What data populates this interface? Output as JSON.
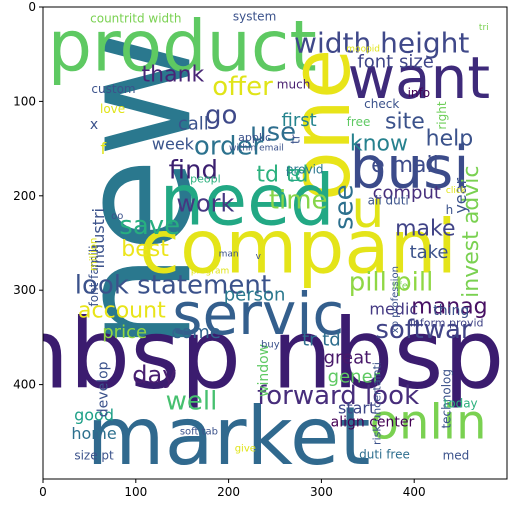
{
  "chart_data": {
    "type": "wordcloud",
    "xlim": [
      0,
      500
    ],
    "ylim": [
      500,
      0
    ],
    "xticks": [
      0,
      100,
      200,
      300,
      400
    ],
    "yticks": [
      0,
      100,
      200,
      300,
      400
    ],
    "words": [
      {
        "text": "new",
        "x": 100,
        "y": 195,
        "size": 155,
        "color": "#2a788e",
        "rotate": -90
      },
      {
        "text": "nbsp nbsp",
        "x": 230,
        "y": 368,
        "size": 96,
        "color": "#3b1c6f"
      },
      {
        "text": "market",
        "x": 200,
        "y": 455,
        "size": 80,
        "color": "#30698e"
      },
      {
        "text": "compani",
        "x": 275,
        "y": 255,
        "size": 74,
        "color": "#e4e419"
      },
      {
        "text": "product",
        "x": 150,
        "y": 42,
        "size": 70,
        "color": "#5ec962"
      },
      {
        "text": "one",
        "x": 300,
        "y": 125,
        "size": 82,
        "color": "#e8e419",
        "rotate": -90
      },
      {
        "text": "need",
        "x": 220,
        "y": 205,
        "size": 70,
        "color": "#22a884"
      },
      {
        "text": "want",
        "x": 405,
        "y": 75,
        "size": 58,
        "color": "#3e2a7a"
      },
      {
        "text": "servic",
        "x": 232,
        "y": 325,
        "size": 58,
        "color": "#345f8d"
      },
      {
        "text": "busi",
        "x": 395,
        "y": 170,
        "size": 58,
        "color": "#3b4b8a"
      },
      {
        "text": "onlin",
        "x": 415,
        "y": 440,
        "size": 48,
        "color": "#7ad151"
      },
      {
        "text": "u",
        "x": 350,
        "y": 215,
        "size": 52,
        "color": "#e0e418"
      },
      {
        "text": "width height",
        "x": 365,
        "y": 38,
        "size": 28,
        "color": "#3f4889"
      },
      {
        "text": "look statement",
        "x": 140,
        "y": 295,
        "size": 26,
        "color": "#3b528b"
      },
      {
        "text": "forward look",
        "x": 318,
        "y": 412,
        "size": 26,
        "color": "#472d7b"
      },
      {
        "text": "pill pill",
        "x": 375,
        "y": 292,
        "size": 26,
        "color": "#8fd744"
      },
      {
        "text": "invest advic",
        "x": 462,
        "y": 238,
        "size": 22,
        "color": "#7ad151",
        "rotate": -90
      },
      {
        "text": "offer",
        "x": 215,
        "y": 85,
        "size": 26,
        "color": "#e0e418"
      },
      {
        "text": "softwar",
        "x": 410,
        "y": 342,
        "size": 26,
        "color": "#414487"
      },
      {
        "text": "account",
        "x": 85,
        "y": 322,
        "size": 22,
        "color": "#e8e419"
      },
      {
        "text": "manag",
        "x": 438,
        "y": 318,
        "size": 22,
        "color": "#471063"
      },
      {
        "text": "order",
        "x": 200,
        "y": 148,
        "size": 26,
        "color": "#2c728e"
      },
      {
        "text": "td td",
        "x": 258,
        "y": 178,
        "size": 22,
        "color": "#2cb17e"
      },
      {
        "text": "go",
        "x": 192,
        "y": 115,
        "size": 26,
        "color": "#3e4989"
      },
      {
        "text": "find",
        "x": 162,
        "y": 173,
        "size": 26,
        "color": "#3b1f6f"
      },
      {
        "text": "see",
        "x": 325,
        "y": 212,
        "size": 26,
        "color": "#2d708e",
        "rotate": -90
      },
      {
        "text": "use",
        "x": 248,
        "y": 133,
        "size": 26,
        "color": "#2e6e8e"
      },
      {
        "text": "save",
        "x": 115,
        "y": 232,
        "size": 26,
        "color": "#28ae80"
      },
      {
        "text": "best",
        "x": 110,
        "y": 257,
        "size": 22,
        "color": "#ece51b"
      },
      {
        "text": "time",
        "x": 275,
        "y": 205,
        "size": 26,
        "color": "#86d549"
      },
      {
        "text": "work",
        "x": 175,
        "y": 208,
        "size": 24,
        "color": "#453781"
      },
      {
        "text": "thank",
        "x": 140,
        "y": 72,
        "size": 22,
        "color": "#482576"
      },
      {
        "text": "day",
        "x": 120,
        "y": 390,
        "size": 24,
        "color": "#481f70"
      },
      {
        "text": "well",
        "x": 160,
        "y": 418,
        "size": 26,
        "color": "#46c06f"
      },
      {
        "text": "site",
        "x": 390,
        "y": 122,
        "size": 22,
        "color": "#3b528b"
      },
      {
        "text": "help",
        "x": 438,
        "y": 140,
        "size": 22,
        "color": "#3b528b"
      },
      {
        "text": "know",
        "x": 362,
        "y": 145,
        "size": 22,
        "color": "#26818e"
      },
      {
        "text": "e mail",
        "x": 390,
        "y": 168,
        "size": 22,
        "color": "#3e4c8a"
      },
      {
        "text": "make",
        "x": 412,
        "y": 235,
        "size": 22,
        "color": "#414487"
      },
      {
        "text": "font size",
        "x": 380,
        "y": 58,
        "size": 18,
        "color": "#404688"
      },
      {
        "text": "first",
        "x": 276,
        "y": 120,
        "size": 18,
        "color": "#25848e"
      },
      {
        "text": "call",
        "x": 162,
        "y": 124,
        "size": 18,
        "color": "#3b528b"
      },
      {
        "text": "week",
        "x": 140,
        "y": 145,
        "size": 16,
        "color": "#3a548c"
      },
      {
        "text": "comput",
        "x": 392,
        "y": 197,
        "size": 18,
        "color": "#472f7d"
      },
      {
        "text": "take",
        "x": 416,
        "y": 260,
        "size": 18,
        "color": "#3b528b"
      },
      {
        "text": "person",
        "x": 228,
        "y": 305,
        "size": 18,
        "color": "#2a788e"
      },
      {
        "text": "come",
        "x": 165,
        "y": 345,
        "size": 18,
        "color": "#32648e"
      },
      {
        "text": "price",
        "x": 88,
        "y": 345,
        "size": 18,
        "color": "#90d743"
      },
      {
        "text": "medic",
        "x": 378,
        "y": 320,
        "size": 16,
        "color": "#443983"
      },
      {
        "text": "great",
        "x": 328,
        "y": 372,
        "size": 18,
        "color": "#48186a"
      },
      {
        "text": "tr td",
        "x": 300,
        "y": 353,
        "size": 18,
        "color": "#2e6e8e"
      },
      {
        "text": "gener",
        "x": 335,
        "y": 392,
        "size": 18,
        "color": "#5ec962"
      },
      {
        "text": "start",
        "x": 338,
        "y": 425,
        "size": 16,
        "color": "#3f4788"
      },
      {
        "text": "good",
        "x": 55,
        "y": 432,
        "size": 16,
        "color": "#1fa088"
      },
      {
        "text": "home",
        "x": 55,
        "y": 452,
        "size": 16,
        "color": "#2d708e"
      },
      {
        "text": "system",
        "x": 228,
        "y": 10,
        "size": 12,
        "color": "#3b528b"
      },
      {
        "text": "countritd width",
        "x": 100,
        "y": 12,
        "size": 12,
        "color": "#7ad151"
      },
      {
        "text": "custom",
        "x": 76,
        "y": 87,
        "size": 12,
        "color": "#3b528b"
      },
      {
        "text": "love",
        "x": 75,
        "y": 108,
        "size": 12,
        "color": "#e0e418"
      },
      {
        "text": "much",
        "x": 270,
        "y": 82,
        "size": 12,
        "color": "#481f70"
      },
      {
        "text": "free",
        "x": 340,
        "y": 122,
        "size": 12,
        "color": "#5ec962"
      },
      {
        "text": "check",
        "x": 365,
        "y": 103,
        "size": 12,
        "color": "#3b528b"
      },
      {
        "text": "info",
        "x": 405,
        "y": 91,
        "size": 12,
        "color": "#440154"
      },
      {
        "text": "year",
        "x": 450,
        "y": 200,
        "size": 16,
        "color": "#3b528b",
        "rotate": -90
      },
      {
        "text": "right",
        "x": 430,
        "y": 115,
        "size": 12,
        "color": "#6ece58",
        "rotate": -90
      },
      {
        "text": "provid",
        "x": 282,
        "y": 172,
        "size": 12,
        "color": "#2a788e"
      },
      {
        "text": "ali duti",
        "x": 372,
        "y": 205,
        "size": 12,
        "color": "#3b528b"
      },
      {
        "text": "applic",
        "x": 228,
        "y": 138,
        "size": 11,
        "color": "#3b528b"
      },
      {
        "text": "within email",
        "x": 230,
        "y": 150,
        "size": 9,
        "color": "#3b528b"
      },
      {
        "text": "peopl",
        "x": 175,
        "y": 182,
        "size": 11,
        "color": "#2cb17e"
      },
      {
        "text": "industri",
        "x": 60,
        "y": 245,
        "size": 16,
        "color": "#3b528b",
        "rotate": -90
      },
      {
        "text": "font famili",
        "x": 55,
        "y": 285,
        "size": 12,
        "color": "#3b528b",
        "rotate": -90
      },
      {
        "text": "million",
        "x": 55,
        "y": 262,
        "size": 10,
        "color": "#e0e418",
        "rotate": -90
      },
      {
        "text": "thing",
        "x": 440,
        "y": 322,
        "size": 14,
        "color": "#3b528b"
      },
      {
        "text": "inform provid",
        "x": 435,
        "y": 335,
        "size": 11,
        "color": "#414487"
      },
      {
        "text": "xp profession",
        "x": 380,
        "y": 310,
        "size": 10,
        "color": "#3b528b",
        "rotate": -90
      },
      {
        "text": "life",
        "x": 385,
        "y": 296,
        "size": 10,
        "color": "#7ad151"
      },
      {
        "text": "develop",
        "x": 65,
        "y": 405,
        "size": 14,
        "color": "#3b528b",
        "rotate": -90
      },
      {
        "text": "window",
        "x": 238,
        "y": 385,
        "size": 14,
        "color": "#5ec962",
        "rotate": -90
      },
      {
        "text": "risk uncertainti",
        "x": 360,
        "y": 420,
        "size": 11,
        "color": "#3b528b",
        "rotate": -90
      },
      {
        "text": "align center",
        "x": 355,
        "y": 440,
        "size": 14,
        "color": "#440154"
      },
      {
        "text": "technolog",
        "x": 435,
        "y": 415,
        "size": 12,
        "color": "#3b528b",
        "rotate": -90
      },
      {
        "text": "today",
        "x": 450,
        "y": 420,
        "size": 12,
        "color": "#2cb17e"
      },
      {
        "text": "soft tab",
        "x": 168,
        "y": 450,
        "size": 10,
        "color": "#3b528b"
      },
      {
        "text": "give",
        "x": 218,
        "y": 468,
        "size": 10,
        "color": "#e0e418"
      },
      {
        "text": "size pt",
        "x": 55,
        "y": 475,
        "size": 12,
        "color": "#3b528b"
      },
      {
        "text": "duti free",
        "x": 368,
        "y": 474,
        "size": 12,
        "color": "#2e6e8e"
      },
      {
        "text": "med",
        "x": 445,
        "y": 475,
        "size": 12,
        "color": "#3b528b"
      },
      {
        "text": "buy",
        "x": 245,
        "y": 358,
        "size": 10,
        "color": "#3b528b"
      },
      {
        "text": "program",
        "x": 180,
        "y": 280,
        "size": 9,
        "color": "#e0e418"
      },
      {
        "text": "man",
        "x": 200,
        "y": 262,
        "size": 9,
        "color": "#3b528b"
      },
      {
        "text": "v",
        "x": 232,
        "y": 265,
        "size": 9,
        "color": "#3b528b"
      },
      {
        "text": "click",
        "x": 445,
        "y": 195,
        "size": 9,
        "color": "#e0e418"
      },
      {
        "text": "moopid",
        "x": 345,
        "y": 45,
        "size": 9,
        "color": "#e0e418"
      },
      {
        "text": "tri",
        "x": 475,
        "y": 22,
        "size": 9,
        "color": "#7ad151"
      },
      {
        "text": "h",
        "x": 438,
        "y": 215,
        "size": 12,
        "color": "#3b528b"
      },
      {
        "text": "oo",
        "x": 80,
        "y": 222,
        "size": 10,
        "color": "#3b528b"
      },
      {
        "text": "f",
        "x": 65,
        "y": 150,
        "size": 16,
        "color": "#e0e418"
      },
      {
        "text": "x",
        "x": 55,
        "y": 125,
        "size": 14,
        "color": "#3b528b"
      },
      {
        "text": "tr",
        "x": 272,
        "y": 140,
        "size": 12,
        "color": "#3b528b",
        "rotate": -90
      },
      {
        "text": "td",
        "x": 272,
        "y": 178,
        "size": 14,
        "color": "#22a884",
        "rotate": -90
      }
    ]
  }
}
